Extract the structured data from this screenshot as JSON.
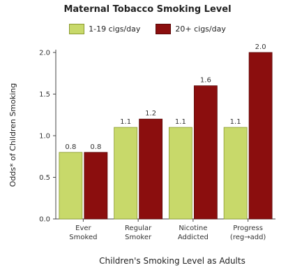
{
  "chart_data": {
    "type": "bar",
    "title": "Maternal Tobacco Smoking Level",
    "xlabel": "Children's Smoking Level as Adults",
    "ylabel": "Odds* of Children Smoking",
    "ylim": [
      0,
      2.0
    ],
    "yticks": [
      "0.0",
      "0.5",
      "1.0",
      "1.5",
      "2.0"
    ],
    "ytick_values": [
      0,
      0.5,
      1.0,
      1.5,
      2.0
    ],
    "legend_position": "top-center",
    "categories": [
      [
        "Ever",
        "Smoked"
      ],
      [
        "Regular",
        "Smoker"
      ],
      [
        "Nicotine",
        "Addicted"
      ],
      [
        "Progress",
        "(reg→add)"
      ]
    ],
    "series": [
      {
        "name": "1-19 cigs/day",
        "color": "#c8d96a",
        "values": [
          0.8,
          1.1,
          1.1,
          1.1
        ],
        "labels": [
          "0.8",
          "1.1",
          "1.1",
          "1.1"
        ]
      },
      {
        "name": "20+ cigs/day",
        "color": "#8b0e0e",
        "values": [
          0.8,
          1.2,
          1.6,
          2.0
        ],
        "labels": [
          "0.8",
          "1.2",
          "1.6",
          "2.0"
        ]
      }
    ]
  }
}
